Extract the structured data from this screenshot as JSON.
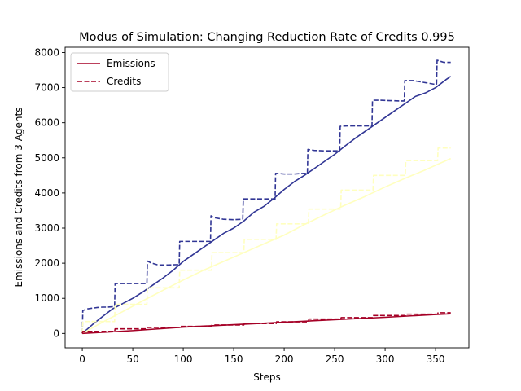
{
  "chart_data": {
    "type": "line",
    "title": "Modus of Simulation: Changing Reduction Rate of Credits 0.995",
    "xlabel": "Steps",
    "ylabel": "Emissions and Credits from 3 Agents",
    "xlim": [
      -17,
      383
    ],
    "ylim": [
      -410,
      8150
    ],
    "xticks": [
      0,
      50,
      100,
      150,
      200,
      250,
      300,
      350
    ],
    "yticks": [
      0,
      1000,
      2000,
      3000,
      4000,
      5000,
      6000,
      7000,
      8000
    ],
    "grid": false,
    "legend_position": "top-left",
    "legend": [
      {
        "label": "Emissions",
        "style": "solid",
        "color": "#a50026"
      },
      {
        "label": "Credits",
        "style": "dashed",
        "color": "#a50026"
      }
    ],
    "series": [
      {
        "kind": "emissions",
        "agent": 1,
        "color": "#313695",
        "style": "solid",
        "x": [
          0,
          10,
          20,
          30,
          40,
          50,
          60,
          70,
          80,
          90,
          100,
          110,
          120,
          130,
          140,
          150,
          160,
          170,
          180,
          190,
          200,
          210,
          220,
          230,
          240,
          250,
          260,
          270,
          280,
          290,
          300,
          310,
          320,
          330,
          340,
          350,
          360,
          365
        ],
        "y": [
          0,
          250,
          480,
          700,
          850,
          1000,
          1180,
          1380,
          1580,
          1800,
          2050,
          2250,
          2450,
          2650,
          2850,
          3000,
          3200,
          3450,
          3620,
          3850,
          4100,
          4320,
          4500,
          4700,
          4900,
          5100,
          5330,
          5550,
          5750,
          5950,
          6150,
          6350,
          6550,
          6750,
          6850,
          7000,
          7220,
          7320
        ]
      },
      {
        "kind": "credits",
        "agent": 1,
        "color": "#313695",
        "style": "dashed",
        "x": [
          0,
          0.5,
          5,
          10,
          15,
          20,
          25,
          30,
          32,
          32.5,
          40,
          50,
          60,
          64,
          64.5,
          68,
          75,
          85,
          96,
          96.5,
          100,
          110,
          120,
          127,
          127.5,
          130,
          140,
          150,
          159,
          159.5,
          165,
          175,
          185,
          190,
          191,
          191.5,
          200,
          210,
          220,
          223,
          223.5,
          230,
          240,
          250,
          255,
          255.5,
          262,
          272,
          282,
          287,
          287.5,
          295,
          305,
          315,
          319,
          319.5,
          328,
          338,
          348,
          351,
          351.5,
          358,
          365
        ],
        "y": [
          0,
          650,
          700,
          720,
          740,
          750,
          750,
          760,
          760,
          1420,
          1420,
          1420,
          1420,
          1420,
          2060,
          2010,
          1950,
          1950,
          1960,
          2620,
          2620,
          2620,
          2620,
          2620,
          3350,
          3300,
          3250,
          3240,
          3250,
          3830,
          3830,
          3830,
          3830,
          3830,
          3830,
          4560,
          4540,
          4540,
          4560,
          4550,
          5240,
          5210,
          5200,
          5200,
          5200,
          5900,
          5910,
          5910,
          5910,
          5910,
          6640,
          6640,
          6630,
          6620,
          6620,
          7200,
          7200,
          7150,
          7100,
          7100,
          7780,
          7720,
          7720
        ]
      },
      {
        "kind": "emissions",
        "agent": 2,
        "color": "#ffffbf",
        "style": "solid",
        "x": [
          0,
          20,
          40,
          60,
          80,
          100,
          120,
          140,
          160,
          180,
          200,
          220,
          240,
          260,
          280,
          300,
          320,
          340,
          365
        ],
        "y": [
          0,
          320,
          620,
          930,
          1230,
          1520,
          1800,
          2050,
          2300,
          2550,
          2800,
          3100,
          3380,
          3650,
          3900,
          4170,
          4420,
          4660,
          4980
        ]
      },
      {
        "kind": "credits",
        "agent": 2,
        "color": "#ffffbf",
        "style": "dashed",
        "x": [
          0,
          0.5,
          32,
          32.5,
          64,
          64.5,
          96,
          96.5,
          128,
          128.5,
          160,
          160.5,
          192,
          192.5,
          224,
          224.5,
          256,
          256.5,
          288,
          288.5,
          320,
          320.5,
          352,
          352.5,
          365
        ],
        "y": [
          0,
          340,
          340,
          830,
          830,
          1300,
          1300,
          1800,
          1800,
          2300,
          2300,
          2680,
          2680,
          3120,
          3120,
          3540,
          3540,
          4080,
          4080,
          4500,
          4500,
          4920,
          4920,
          5280,
          5280
        ]
      },
      {
        "kind": "emissions",
        "agent": 3,
        "color": "#a50026",
        "style": "solid",
        "x": [
          0,
          50,
          100,
          150,
          200,
          250,
          300,
          350,
          365
        ],
        "y": [
          0,
          80,
          180,
          250,
          320,
          390,
          460,
          540,
          560
        ]
      },
      {
        "kind": "credits",
        "agent": 3,
        "color": "#a50026",
        "style": "dashed",
        "x": [
          0,
          0.5,
          32,
          32.5,
          64,
          64.5,
          96,
          96.5,
          128,
          128.5,
          160,
          160.5,
          192,
          192.5,
          224,
          224.5,
          256,
          256.5,
          288,
          288.5,
          320,
          320.5,
          352,
          352.5,
          365
        ],
        "y": [
          0,
          60,
          60,
          130,
          130,
          170,
          170,
          200,
          200,
          240,
          240,
          280,
          280,
          330,
          330,
          410,
          410,
          450,
          450,
          510,
          510,
          550,
          550,
          590,
          590
        ]
      }
    ]
  }
}
